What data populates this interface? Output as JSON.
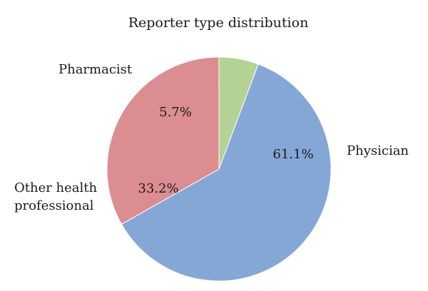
{
  "chart_data": {
    "type": "pie",
    "title": "Reporter type distribution",
    "slices": [
      {
        "label": "Physician",
        "label_lines": [
          "Physician"
        ],
        "value": 61.1,
        "value_label": "61.1%",
        "color": "#85a7d6"
      },
      {
        "label": "Other health professional",
        "label_lines": [
          "Other health",
          "professional"
        ],
        "value": 33.2,
        "value_label": "33.2%",
        "color": "#dc8d92"
      },
      {
        "label": "Pharmacist",
        "label_lines": [
          "Pharmacist"
        ],
        "value": 5.7,
        "value_label": "5.7%",
        "color": "#b4d294"
      }
    ],
    "start_angle_deg": 20.5,
    "direction": "clockwise"
  }
}
